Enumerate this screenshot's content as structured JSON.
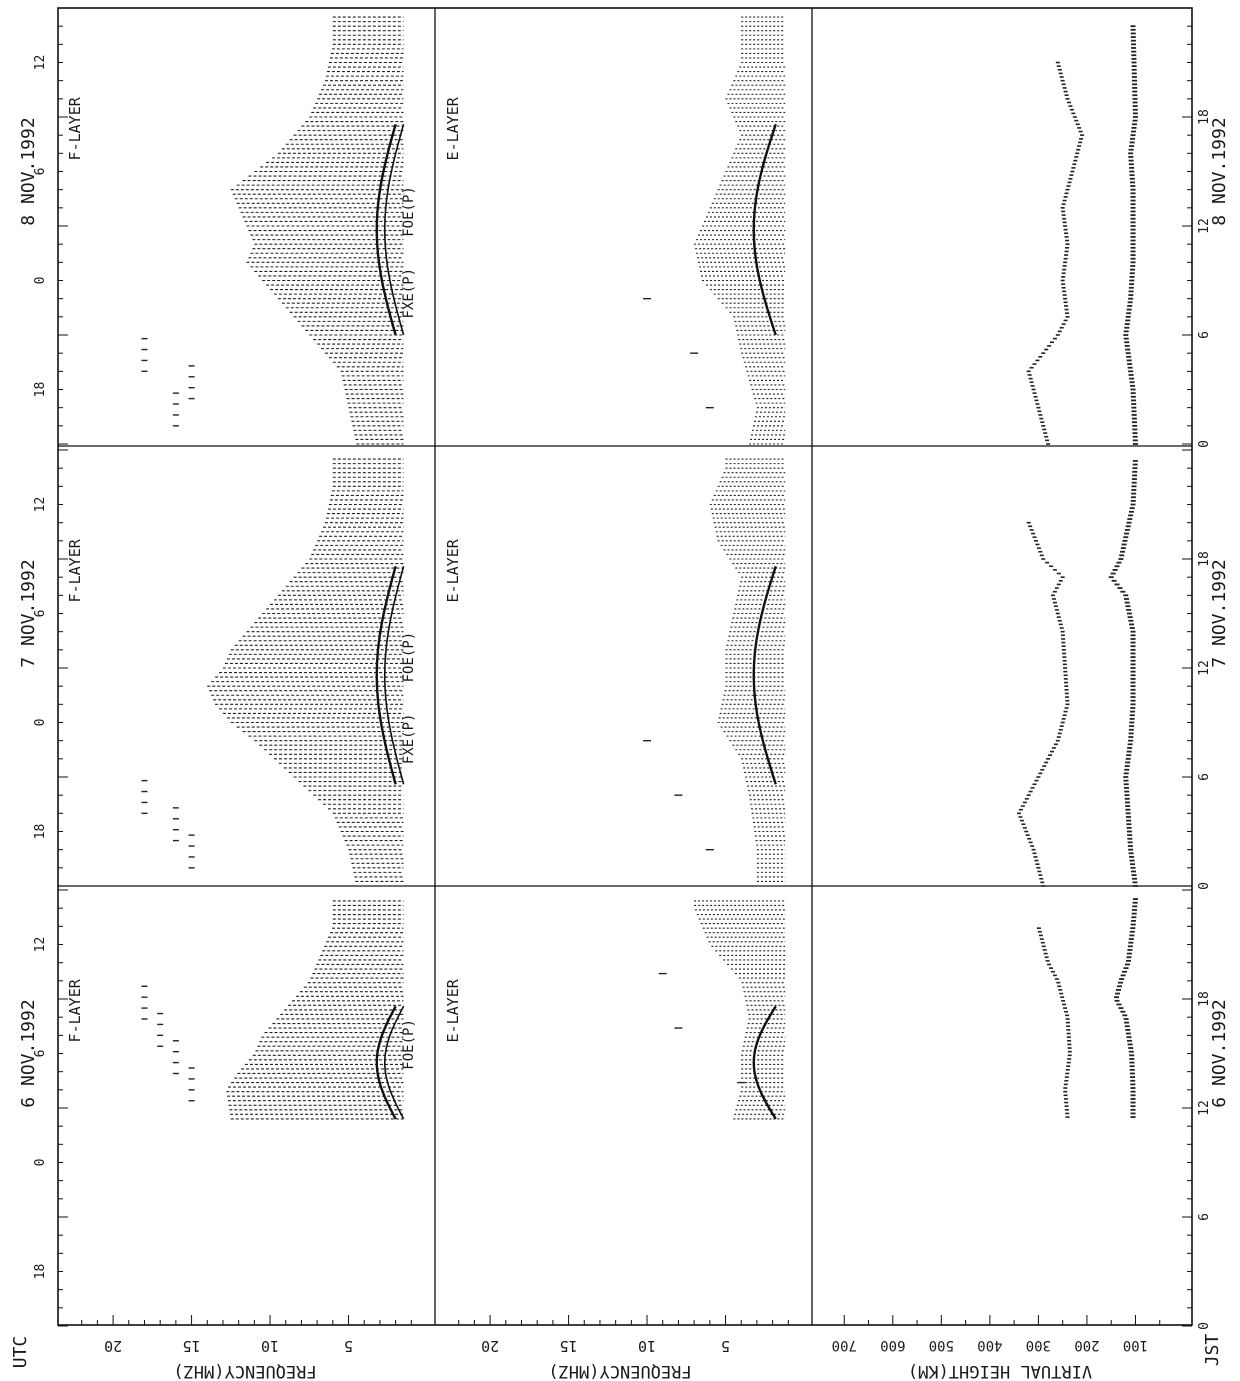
{
  "chart_data": {
    "type": "scatter",
    "orientation": "rotated 90 degrees clockwise; day axis runs top-to-bottom inside each column, later days to the left",
    "rows_x_labels": {
      "utc": "UTC",
      "jst": "JST"
    },
    "panel_labels": {
      "f_layer": "F-LAYER",
      "e_layer": "E-LAYER",
      "fxe": "FXE(P)",
      "foe": "FOE(P)"
    },
    "y_axes": {
      "f_frequency": {
        "label": "FREQUENCY(MHZ)",
        "ticks": [
          "5",
          "10",
          "15",
          "20"
        ],
        "range": [
          0,
          23
        ]
      },
      "e_frequency": {
        "label": "FREQUENCY(MHZ)",
        "ticks": [
          "5",
          "10",
          "15",
          "20"
        ],
        "range": [
          0,
          23
        ]
      },
      "virtual_height": {
        "label": "VIRTUAL HEIGHT(KM)",
        "ticks": [
          "100",
          "200",
          "300",
          "400",
          "500",
          "600",
          "700"
        ],
        "range": [
          0,
          750
        ]
      }
    },
    "days": [
      {
        "utc_date": "6 NOV.1992",
        "jst_date": "6 NOV.1992",
        "utc_ticks": [
          "18",
          "0",
          "6",
          "12"
        ],
        "jst_ticks": [
          "0",
          "6",
          "12",
          "18"
        ],
        "f_layer": {
          "hour_range_jst": [
            11.4,
            23.6
          ],
          "max_freq_mhz": [
            [
              11.4,
              12.5
            ],
            [
              13,
              12.8
            ],
            [
              14,
              12
            ],
            [
              15,
              11
            ],
            [
              16,
              10.5
            ],
            [
              17,
              9.5
            ],
            [
              18,
              8.5
            ],
            [
              19,
              7.5
            ],
            [
              20,
              7
            ],
            [
              21,
              6.5
            ],
            [
              22,
              6
            ],
            [
              23,
              6
            ]
          ],
          "min_freq_mhz": 1.5,
          "sporadic_mhz": [
            15,
            16,
            17,
            18
          ]
        },
        "e_layer": {
          "hour_range_jst": [
            11.4,
            23.6
          ],
          "max_freq_mhz": [
            [
              11.5,
              4.5
            ],
            [
              13,
              4
            ],
            [
              15,
              4
            ],
            [
              17,
              3.5
            ],
            [
              19,
              4
            ],
            [
              21,
              6
            ],
            [
              23,
              7
            ]
          ],
          "sporadic_mhz": [
            4,
            8,
            9
          ]
        },
        "heights_km": {
          "f_trace": [
            [
              11.5,
              240
            ],
            [
              13,
              245
            ],
            [
              15,
              235
            ],
            [
              17,
              240
            ],
            [
              19,
              260
            ],
            [
              20,
              280
            ],
            [
              21,
              290
            ],
            [
              22,
              300
            ]
          ],
          "e_trace": [
            [
              11.5,
              105
            ],
            [
              13,
              105
            ],
            [
              15,
              108
            ],
            [
              17,
              120
            ],
            [
              18,
              140
            ],
            [
              19,
              130
            ],
            [
              20,
              115
            ],
            [
              22,
              105
            ],
            [
              23.5,
              100
            ]
          ]
        },
        "curve_jst": [
          11.4,
          17.6
        ]
      },
      {
        "utc_date": "7 NOV.1992",
        "jst_date": "7 NOV.1992",
        "utc_ticks": [
          "18",
          "0",
          "6",
          "12"
        ],
        "jst_ticks": [
          "0",
          "6",
          "12",
          "18"
        ],
        "f_layer": {
          "hour_range_jst": [
            0,
            23.6
          ],
          "max_freq_mhz": [
            [
              0,
              4.5
            ],
            [
              2,
              5
            ],
            [
              4,
              6
            ],
            [
              6,
              8.5
            ],
            [
              8,
              11
            ],
            [
              9,
              12.5
            ],
            [
              10,
              13.5
            ],
            [
              11,
              14
            ],
            [
              12,
              13
            ],
            [
              13,
              12.5
            ],
            [
              14,
              11.5
            ],
            [
              15,
              10.5
            ],
            [
              16,
              9.5
            ],
            [
              17,
              8.5
            ],
            [
              18,
              7.5
            ],
            [
              19,
              7
            ],
            [
              20,
              6.5
            ],
            [
              22,
              6
            ],
            [
              23.5,
              6
            ]
          ],
          "min_freq_mhz": 1.5,
          "sporadic_mhz": [
            15,
            16,
            18
          ]
        },
        "e_layer": {
          "hour_range_jst": [
            0,
            23.6
          ],
          "max_freq_mhz": [
            [
              0,
              3
            ],
            [
              2,
              3
            ],
            [
              5,
              3.5
            ],
            [
              7,
              4
            ],
            [
              9,
              5.5
            ],
            [
              11,
              5
            ],
            [
              13,
              5
            ],
            [
              15,
              4.5
            ],
            [
              17,
              4
            ],
            [
              19,
              5.5
            ],
            [
              21,
              6
            ],
            [
              23,
              5
            ]
          ],
          "sporadic_mhz": [
            6,
            8,
            10
          ]
        },
        "heights_km": {
          "f_trace": [
            [
              0,
              290
            ],
            [
              2,
              310
            ],
            [
              4,
              340
            ],
            [
              6,
              300
            ],
            [
              8,
              260
            ],
            [
              10,
              240
            ],
            [
              12,
              245
            ],
            [
              14,
              250
            ],
            [
              16,
              270
            ],
            [
              17,
              250
            ],
            [
              18,
              290
            ],
            [
              20,
              320
            ]
          ],
          "e_trace": [
            [
              0,
              100
            ],
            [
              2,
              110
            ],
            [
              6,
              120
            ],
            [
              8,
              110
            ],
            [
              10,
              105
            ],
            [
              14,
              105
            ],
            [
              16,
              120
            ],
            [
              17,
              150
            ],
            [
              18,
              130
            ],
            [
              21,
              105
            ],
            [
              23.5,
              100
            ]
          ]
        },
        "curve_jst": [
          5.6,
          17.6
        ]
      },
      {
        "utc_date": "8 NOV.1992",
        "jst_date": "8 NOV.1992",
        "utc_ticks": [
          "18",
          "0",
          "6",
          "12"
        ],
        "jst_ticks": [
          "0",
          "6",
          "12",
          "18"
        ],
        "f_layer": {
          "hour_range_jst": [
            0,
            23.6
          ],
          "max_freq_mhz": [
            [
              0,
              4.5
            ],
            [
              2,
              5
            ],
            [
              4,
              5.5
            ],
            [
              6,
              7.5
            ],
            [
              8,
              9.5
            ],
            [
              9,
              10.5
            ],
            [
              10,
              11.5
            ],
            [
              11,
              11
            ],
            [
              12,
              11.5
            ],
            [
              13,
              12
            ],
            [
              14,
              12.5
            ],
            [
              15,
              11
            ],
            [
              16,
              9.5
            ],
            [
              17,
              8.5
            ],
            [
              18,
              7.5
            ],
            [
              19,
              7
            ],
            [
              20,
              6.5
            ],
            [
              22,
              6
            ],
            [
              23.5,
              6
            ]
          ],
          "min_freq_mhz": 1.5,
          "sporadic_mhz": [
            16,
            15,
            18
          ]
        },
        "e_layer": {
          "hour_range_jst": [
            0,
            23.6
          ],
          "max_freq_mhz": [
            [
              0,
              3.5
            ],
            [
              2,
              3
            ],
            [
              5,
              4
            ],
            [
              7,
              4.5
            ],
            [
              9,
              6.5
            ],
            [
              11,
              7
            ],
            [
              13,
              6
            ],
            [
              15,
              5
            ],
            [
              17,
              4
            ],
            [
              19,
              5
            ],
            [
              21,
              4
            ],
            [
              23,
              4
            ]
          ],
          "sporadic_mhz": [
            6,
            7,
            10
          ]
        },
        "heights_km": {
          "f_trace": [
            [
              0,
              280
            ],
            [
              2,
              300
            ],
            [
              4,
              320
            ],
            [
              6,
              260
            ],
            [
              7,
              240
            ],
            [
              9,
              250
            ],
            [
              11,
              240
            ],
            [
              13,
              250
            ],
            [
              15,
              230
            ],
            [
              17,
              210
            ],
            [
              19,
              240
            ],
            [
              21,
              260
            ]
          ],
          "e_trace": [
            [
              0,
              100
            ],
            [
              3,
              105
            ],
            [
              6,
              120
            ],
            [
              8,
              110
            ],
            [
              10,
              105
            ],
            [
              14,
              105
            ],
            [
              16,
              110
            ],
            [
              18,
              100
            ],
            [
              23,
              105
            ]
          ]
        },
        "curve_jst": [
          6.0,
          17.6
        ]
      }
    ]
  }
}
